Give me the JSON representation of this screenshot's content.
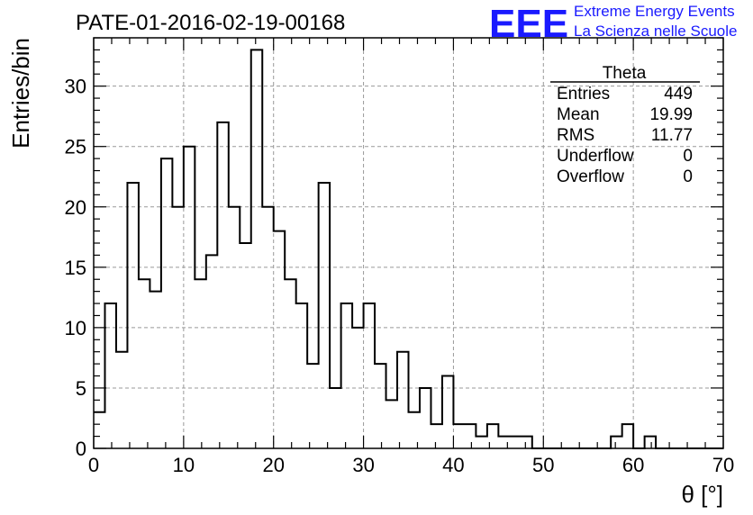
{
  "header": {
    "title": "PATE-01-2016-02-19-00168",
    "logo_text": "EEE",
    "logo_line1": "Extreme Energy Events",
    "logo_line2": "La Scienza nelle Scuole",
    "logo_color": "#1a1aff"
  },
  "stats_box": {
    "name": "Theta",
    "rows": [
      {
        "label": "Entries",
        "value": "449"
      },
      {
        "label": "Mean",
        "value": "19.99"
      },
      {
        "label": "RMS",
        "value": "11.77"
      },
      {
        "label": "Underflow",
        "value": "0"
      },
      {
        "label": "Overflow",
        "value": "0"
      }
    ]
  },
  "chart_data": {
    "type": "histogram",
    "title": "PATE-01-2016-02-19-00168",
    "xlabel": "θ [°]",
    "ylabel": "Entries/bin",
    "xlim": [
      0,
      70
    ],
    "ylim": [
      0,
      34
    ],
    "grid": true,
    "bin_start": 0,
    "bin_width": 1.25,
    "x_ticks": [
      0,
      10,
      20,
      30,
      40,
      50,
      60,
      70
    ],
    "y_ticks": [
      0,
      5,
      10,
      15,
      20,
      25,
      30
    ],
    "values": [
      3,
      12,
      8,
      22,
      14,
      13,
      24,
      20,
      25,
      14,
      16,
      27,
      20,
      17,
      33,
      20,
      18,
      14,
      12,
      7,
      22,
      5,
      12,
      10,
      12,
      7,
      4,
      8,
      3,
      5,
      2,
      6,
      2,
      2,
      1,
      2,
      1,
      1,
      1,
      0,
      0,
      0,
      0,
      0,
      0,
      0,
      1,
      2,
      0,
      1,
      0,
      0,
      0,
      0,
      0,
      0
    ]
  }
}
